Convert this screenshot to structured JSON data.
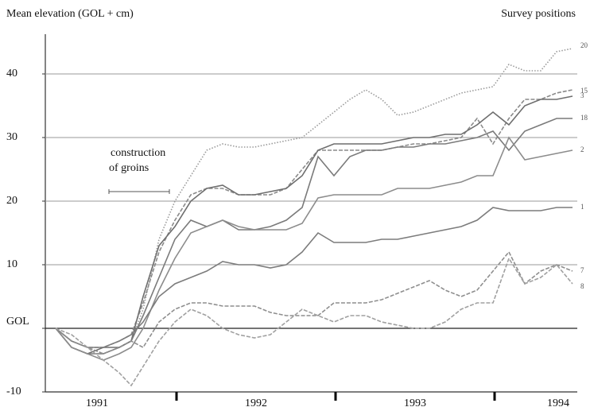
{
  "chart_data": {
    "type": "line",
    "title": "Mean elevation (GOL + cm)",
    "legend_title": "Survey positions",
    "x": [
      1991.24,
      1991.34,
      1991.44,
      1991.54,
      1991.64,
      1991.715,
      1991.79,
      1991.89,
      1991.99,
      1992.09,
      1992.19,
      1992.29,
      1992.39,
      1992.49,
      1992.59,
      1992.69,
      1992.79,
      1992.89,
      1992.99,
      1993.09,
      1993.19,
      1993.29,
      1993.39,
      1993.49,
      1993.59,
      1993.69,
      1993.79,
      1993.89,
      1993.99,
      1994.09,
      1994.19,
      1994.29,
      1994.39,
      1994.49
    ],
    "series": [
      {
        "name": "20",
        "color": "#9a9a9a",
        "style": "dotted",
        "values": [
          0,
          -2,
          -3,
          -4,
          -3,
          -2,
          3,
          14,
          20,
          24,
          28,
          29,
          28.5,
          28.5,
          29,
          29.5,
          30,
          32,
          34,
          36,
          37.5,
          36,
          33.5,
          34,
          35,
          36,
          37,
          37.5,
          38,
          41.5,
          40.5,
          40.5,
          43.5,
          44
        ]
      },
      {
        "name": "15",
        "color": "#8a8a8a",
        "style": "dashed",
        "values": [
          0,
          -2,
          -3,
          -3,
          -2,
          -1,
          4,
          12,
          17,
          21,
          22,
          22,
          21,
          21,
          21,
          22,
          25,
          28,
          28,
          28,
          28,
          28,
          28.5,
          29,
          29,
          29.5,
          30,
          33,
          29,
          33,
          36,
          36,
          37,
          37.5
        ]
      },
      {
        "name": "3",
        "color": "#6e6e6e",
        "style": "solid",
        "values": [
          0,
          -3,
          -4,
          -3,
          -3,
          -2,
          5,
          13,
          16,
          20,
          22,
          22.5,
          21,
          21,
          21.5,
          22,
          24,
          28,
          29,
          29,
          29,
          29,
          29.5,
          30,
          30,
          30.5,
          30.5,
          32,
          34,
          32,
          35,
          36,
          36,
          36.5
        ]
      },
      {
        "name": "18",
        "color": "#7a7a7a",
        "style": "solid",
        "values": [
          0,
          -3,
          -4,
          -4,
          -3,
          -2,
          2,
          8,
          14,
          17,
          16,
          17,
          15.5,
          15.5,
          16,
          17,
          19,
          27,
          24,
          27,
          28,
          28,
          28.5,
          28.5,
          29,
          29,
          29.5,
          30,
          31,
          28,
          31,
          32,
          33,
          33
        ]
      },
      {
        "name": "2",
        "color": "#8c8c8c",
        "style": "solid",
        "values": [
          0,
          -3,
          -4,
          -5,
          -4,
          -3,
          0,
          6,
          11,
          15,
          16,
          17,
          16,
          15.5,
          15.5,
          15.5,
          16.5,
          20.5,
          21,
          21,
          21,
          21,
          22,
          22,
          22,
          22.5,
          23,
          24,
          24,
          30,
          26.5,
          27,
          27.5,
          28
        ]
      },
      {
        "name": "1",
        "color": "#7c7c7c",
        "style": "solid",
        "values": [
          0,
          -2,
          -3,
          -3,
          -2,
          -1,
          1,
          5,
          7,
          8,
          9,
          10.5,
          10,
          10,
          9.5,
          10,
          12,
          15,
          13.5,
          13.5,
          13.5,
          14,
          14,
          14.5,
          15,
          15.5,
          16,
          17,
          19,
          18.5,
          18.5,
          18.5,
          19,
          19
        ]
      },
      {
        "name": "7",
        "color": "#8e8e8e",
        "style": "dashed",
        "values": [
          0,
          -2,
          -3,
          -4,
          -3,
          -2,
          -3,
          1,
          3,
          4,
          4,
          3.5,
          3.5,
          3.5,
          2.5,
          2,
          2,
          2,
          4,
          4,
          4,
          4.5,
          5.5,
          6.5,
          7.5,
          6,
          5,
          6,
          9,
          12,
          7,
          9,
          10,
          9
        ]
      },
      {
        "name": "8",
        "color": "#a0a0a0",
        "style": "dashed",
        "values": [
          0,
          -1,
          -3,
          -5,
          -7,
          -9,
          -6,
          -2,
          1,
          3,
          2,
          0,
          -1,
          -1.5,
          -1,
          1,
          3,
          2,
          1,
          2,
          2,
          1,
          0.5,
          0,
          0,
          1,
          3,
          4,
          4,
          11,
          7,
          8,
          10,
          7
        ]
      }
    ],
    "xlim": [
      1991.175,
      1994.52
    ],
    "xticks": [
      {
        "value": 1991.5,
        "label": "1991"
      },
      {
        "value": 1992.5,
        "label": "1992"
      },
      {
        "value": 1993.5,
        "label": "1993"
      },
      {
        "value": 1994.4,
        "label": "1994"
      }
    ],
    "year_boundaries": [
      1992,
      1993,
      1994
    ],
    "ylim": [
      -10,
      45
    ],
    "yticks": [
      -10,
      {
        "value": 0,
        "label": "GOL"
      },
      10,
      20,
      30,
      40
    ],
    "grid": true,
    "annotations": [
      {
        "lines": [
          "construction",
          "of groins"
        ],
        "x_range": [
          1991.575,
          1991.955
        ],
        "y": 21.5
      }
    ]
  }
}
